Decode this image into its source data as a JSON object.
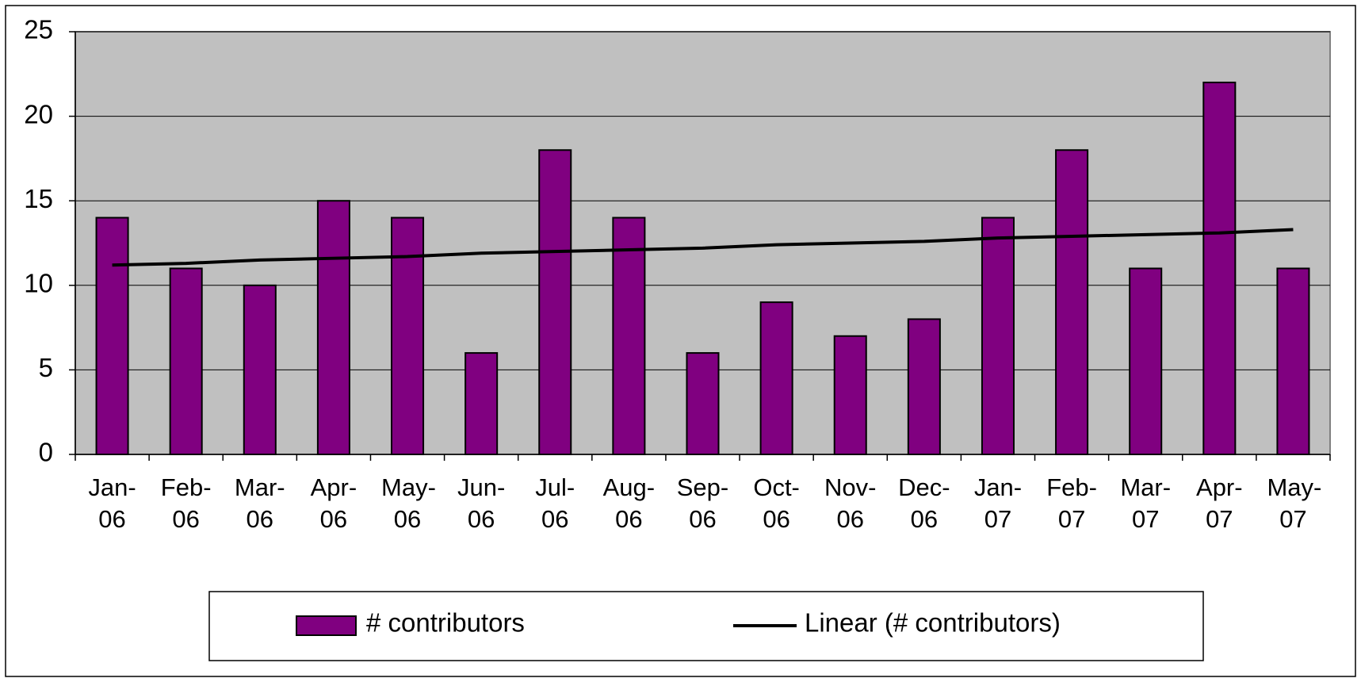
{
  "chart_data": {
    "type": "bar",
    "categories": [
      "Jan-06",
      "Feb-06",
      "Mar-06",
      "Apr-06",
      "May-06",
      "Jun-06",
      "Jul-06",
      "Aug-06",
      "Sep-06",
      "Oct-06",
      "Nov-06",
      "Dec-06",
      "Jan-07",
      "Feb-07",
      "Mar-07",
      "Apr-07",
      "May-07"
    ],
    "series": [
      {
        "name": "# contributors",
        "type": "bar",
        "color": "#800080",
        "values": [
          14,
          11,
          10,
          15,
          14,
          6,
          18,
          14,
          6,
          9,
          7,
          8,
          14,
          18,
          11,
          22,
          11
        ]
      },
      {
        "name": "Linear (# contributors)",
        "type": "line",
        "color": "#000000",
        "values": [
          11.2,
          11.3,
          11.5,
          11.6,
          11.7,
          11.9,
          12.0,
          12.1,
          12.2,
          12.4,
          12.5,
          12.6,
          12.8,
          12.9,
          13.0,
          13.1,
          13.3
        ]
      }
    ],
    "ylim": [
      0,
      25
    ],
    "yticks": [
      0,
      5,
      10,
      15,
      20,
      25
    ],
    "grid": true,
    "legend": "bottom"
  }
}
